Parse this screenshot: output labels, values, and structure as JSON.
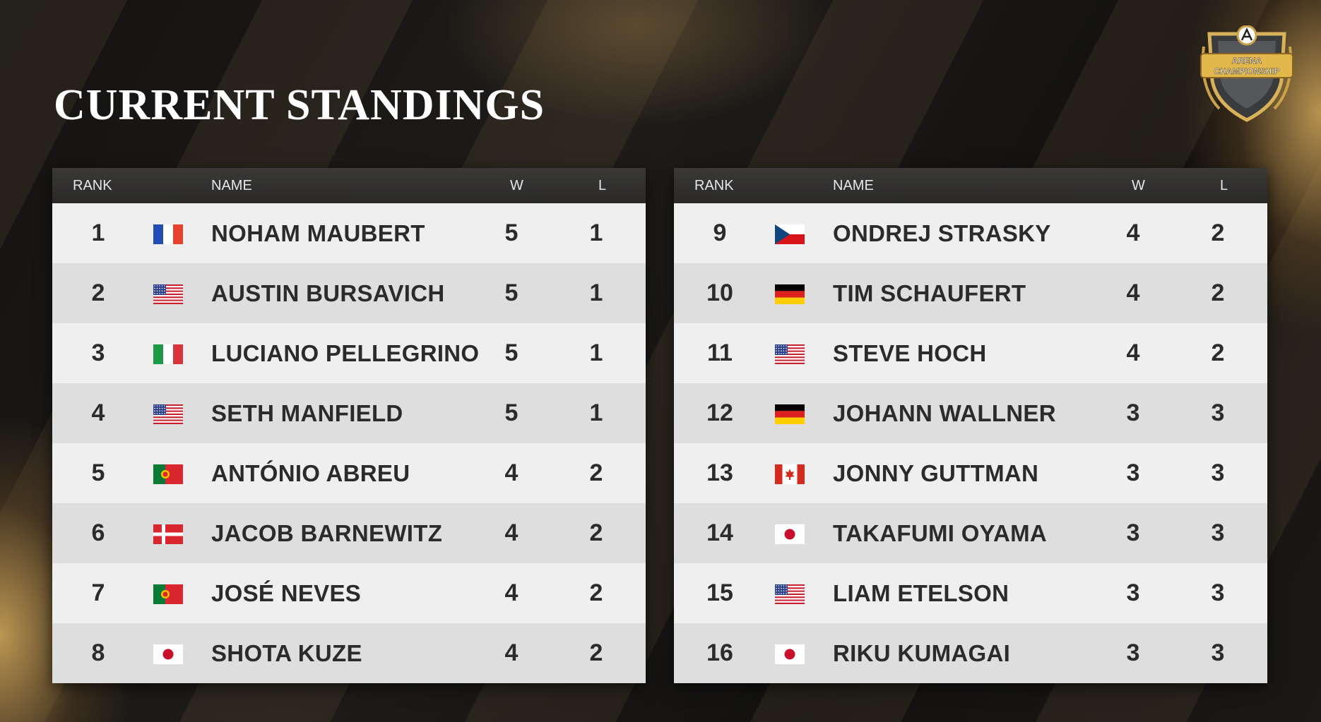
{
  "title": "CURRENT STANDINGS",
  "logo": {
    "line1": "ARENA",
    "line2": "CHAMPIONSHIP",
    "icon": "arena-championship-shield-icon"
  },
  "headers": {
    "rank": "RANK",
    "name": "NAME",
    "w": "W",
    "l": "L"
  },
  "left": [
    {
      "rank": "1",
      "flag": "france",
      "name": "NOHAM MAUBERT",
      "w": "5",
      "l": "1"
    },
    {
      "rank": "2",
      "flag": "usa",
      "name": "AUSTIN BURSAVICH",
      "w": "5",
      "l": "1"
    },
    {
      "rank": "3",
      "flag": "italy",
      "name": "LUCIANO PELLEGRINO",
      "w": "5",
      "l": "1"
    },
    {
      "rank": "4",
      "flag": "usa",
      "name": "SETH MANFIELD",
      "w": "5",
      "l": "1"
    },
    {
      "rank": "5",
      "flag": "portugal",
      "name": "ANTÓNIO ABREU",
      "w": "4",
      "l": "2"
    },
    {
      "rank": "6",
      "flag": "denmark",
      "name": "JACOB BARNEWITZ",
      "w": "4",
      "l": "2"
    },
    {
      "rank": "7",
      "flag": "portugal",
      "name": "JOSÉ NEVES",
      "w": "4",
      "l": "2"
    },
    {
      "rank": "8",
      "flag": "japan",
      "name": "SHOTA KUZE",
      "w": "4",
      "l": "2"
    }
  ],
  "right": [
    {
      "rank": "9",
      "flag": "czech",
      "name": "ONDREJ STRASKY",
      "w": "4",
      "l": "2"
    },
    {
      "rank": "10",
      "flag": "germany",
      "name": "TIM SCHAUFERT",
      "w": "4",
      "l": "2"
    },
    {
      "rank": "11",
      "flag": "usa",
      "name": "STEVE HOCH",
      "w": "4",
      "l": "2"
    },
    {
      "rank": "12",
      "flag": "germany",
      "name": "JOHANN WALLNER",
      "w": "3",
      "l": "3"
    },
    {
      "rank": "13",
      "flag": "canada",
      "name": "JONNY GUTTMAN",
      "w": "3",
      "l": "3"
    },
    {
      "rank": "14",
      "flag": "japan",
      "name": "TAKAFUMI OYAMA",
      "w": "3",
      "l": "3"
    },
    {
      "rank": "15",
      "flag": "usa",
      "name": "LIAM ETELSON",
      "w": "3",
      "l": "3"
    },
    {
      "rank": "16",
      "flag": "japan",
      "name": "RIKU KUMAGAI",
      "w": "3",
      "l": "3"
    }
  ]
}
